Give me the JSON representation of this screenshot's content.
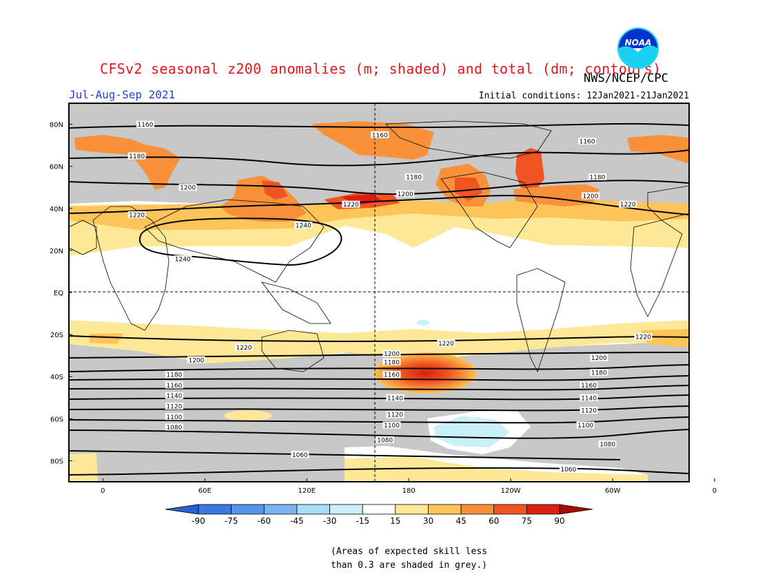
{
  "header": {
    "title": "CFSv2 seasonal z200 anomalies (m; shaded) and total (dm; contours)",
    "agency": "NWS/NCEP/CPC",
    "season": "Jul-Aug-Sep 2021",
    "initial_conditions": "Initial conditions: 12Jan2021-21Jan2021",
    "logo_text": "NOAA"
  },
  "map": {
    "lat_labels": [
      "80N",
      "60N",
      "40N",
      "20N",
      "EQ",
      "20S",
      "40S",
      "60S",
      "80S"
    ],
    "lon_labels": [
      "0",
      "60E",
      "120E",
      "180",
      "120W",
      "60W",
      "0"
    ],
    "contour_labels": [
      {
        "text": "1160",
        "lon": 25,
        "lat": 80
      },
      {
        "text": "1160",
        "lon": 163,
        "lat": 75
      },
      {
        "text": "1160",
        "lon": -75,
        "lat": 72
      },
      {
        "text": "1180",
        "lon": 20,
        "lat": 65
      },
      {
        "text": "1180",
        "lon": 183,
        "lat": 55
      },
      {
        "text": "1180",
        "lon": -69,
        "lat": 55
      },
      {
        "text": "1200",
        "lon": 50,
        "lat": 50
      },
      {
        "text": "1200",
        "lon": 178,
        "lat": 47
      },
      {
        "text": "1200",
        "lon": -73,
        "lat": 46
      },
      {
        "text": "1220",
        "lon": 20,
        "lat": 37
      },
      {
        "text": "1220",
        "lon": 146,
        "lat": 42
      },
      {
        "text": "1220",
        "lon": -51,
        "lat": 42
      },
      {
        "text": "1240",
        "lon": 118,
        "lat": 32
      },
      {
        "text": "1240",
        "lon": 47,
        "lat": 16
      },
      {
        "text": "1220",
        "lon": 83,
        "lat": -26
      },
      {
        "text": "1220",
        "lon": 202,
        "lat": -24
      },
      {
        "text": "1220",
        "lon": -42,
        "lat": -21
      },
      {
        "text": "1200",
        "lon": 55,
        "lat": -32
      },
      {
        "text": "1200",
        "lon": 170,
        "lat": -29
      },
      {
        "text": "1200",
        "lon": -68,
        "lat": -31
      },
      {
        "text": "1180",
        "lon": 42,
        "lat": -39
      },
      {
        "text": "1180",
        "lon": 170,
        "lat": -33
      },
      {
        "text": "1180",
        "lon": -68,
        "lat": -38
      },
      {
        "text": "1160",
        "lon": 42,
        "lat": -44
      },
      {
        "text": "1160",
        "lon": 170,
        "lat": -39
      },
      {
        "text": "1160",
        "lon": -74,
        "lat": -44
      },
      {
        "text": "1140",
        "lon": 42,
        "lat": -49
      },
      {
        "text": "1140",
        "lon": 172,
        "lat": -50
      },
      {
        "text": "1140",
        "lon": -74,
        "lat": -50
      },
      {
        "text": "1120",
        "lon": 42,
        "lat": -54
      },
      {
        "text": "1120",
        "lon": 172,
        "lat": -58
      },
      {
        "text": "1120",
        "lon": -74,
        "lat": -56
      },
      {
        "text": "1100",
        "lon": 42,
        "lat": -59
      },
      {
        "text": "1100",
        "lon": 170,
        "lat": -63
      },
      {
        "text": "1100",
        "lon": -76,
        "lat": -63
      },
      {
        "text": "1080",
        "lon": 42,
        "lat": -64
      },
      {
        "text": "1080",
        "lon": 166,
        "lat": -70
      },
      {
        "text": "1080",
        "lon": -63,
        "lat": -72
      },
      {
        "text": "1060",
        "lon": 116,
        "lat": -77
      },
      {
        "text": "1060",
        "lon": -86,
        "lat": -84
      }
    ]
  },
  "colorbar": {
    "labels": [
      "-90",
      "-75",
      "-60",
      "-45",
      "-30",
      "-15",
      "15",
      "30",
      "45",
      "60",
      "75",
      "90"
    ],
    "colors": [
      "#2a5fd6",
      "#3b78e0",
      "#5694e8",
      "#79b2f0",
      "#a9dcf5",
      "#c9f0f8",
      "#ffffff",
      "#fde898",
      "#fdc45a",
      "#f8913a",
      "#f05422",
      "#dc1e10",
      "#a50a05"
    ]
  },
  "note": {
    "line1": "(Areas of expected skill less",
    "line2": "than 0.3 are shaded in grey.)"
  }
}
